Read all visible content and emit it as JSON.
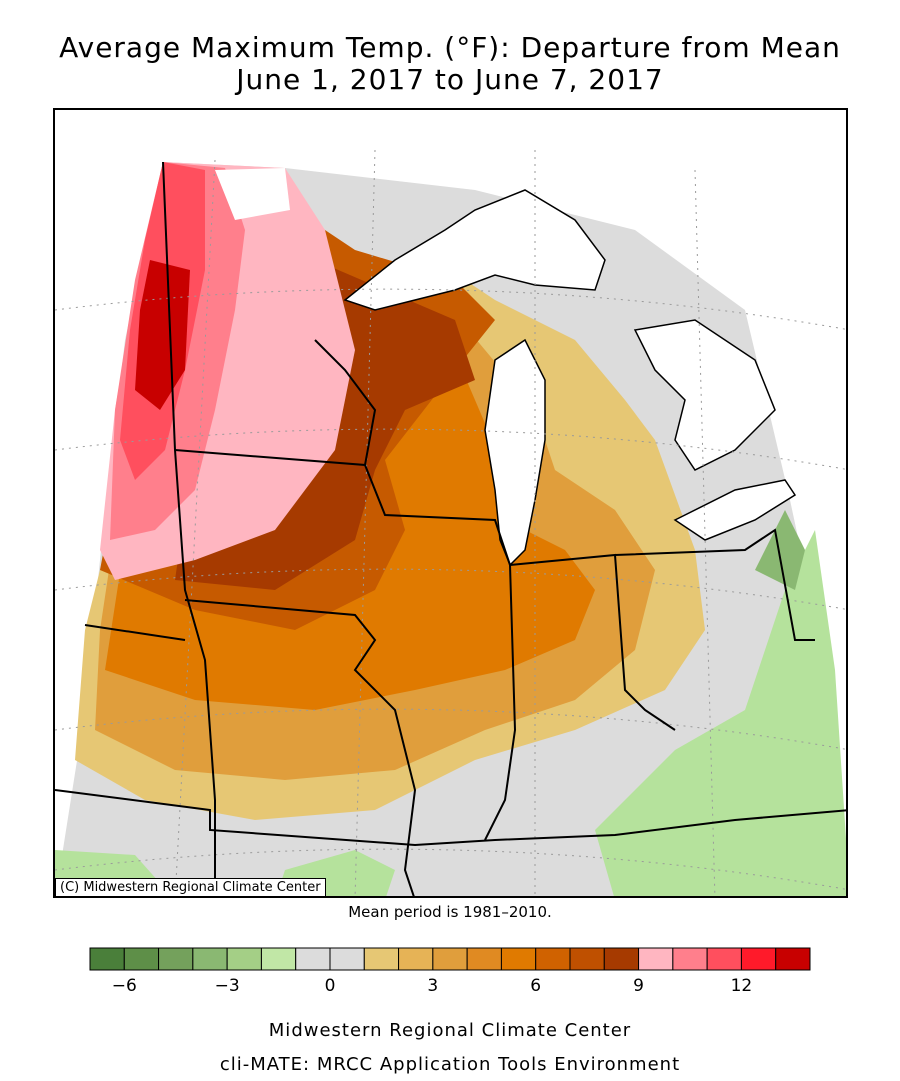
{
  "title": {
    "line1": "Average Maximum Temp. (°F): Departure from Mean",
    "line2": "June 1, 2017 to June 7, 2017"
  },
  "map": {
    "copyright": "(C) Midwestern Regional Climate Center",
    "mean_period": "Mean period is 1981–2010."
  },
  "legend": {
    "colors": [
      "#4a7f3a",
      "#5e8f48",
      "#74a15c",
      "#8ab872",
      "#a4cf86",
      "#c1e7a6",
      "#dcdcdc",
      "#dcdcdc",
      "#e6c774",
      "#e6b356",
      "#e09e3c",
      "#e08a22",
      "#e07a00",
      "#d06200",
      "#bf5000",
      "#a63a00",
      "#ffb6c1",
      "#ff7f8c",
      "#ff4f5e",
      "#ff1a2a",
      "#c80000"
    ],
    "ticks": [
      "−6",
      "−3",
      "0",
      "3",
      "6",
      "9",
      "12"
    ]
  },
  "footer": {
    "line1": "Midwestern Regional Climate Center",
    "line2": "cli-MATE: MRCC Application Tools Environment"
  }
}
